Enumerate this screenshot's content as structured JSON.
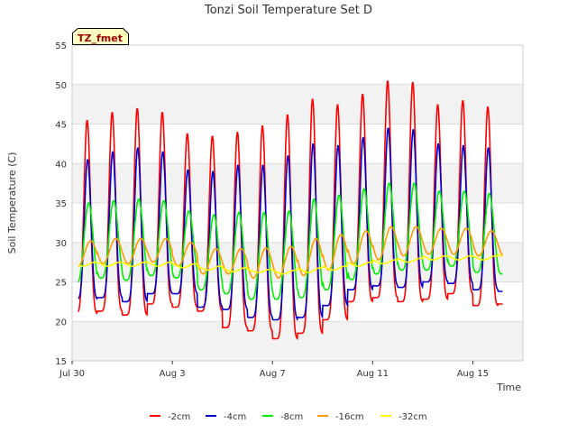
{
  "chart_data": {
    "type": "line",
    "title": "Tonzi Soil Temperature Set D",
    "xlabel": "Time",
    "ylabel": "Soil Temperature (C)",
    "annotation": "TZ_fmet",
    "xlim": [
      0,
      18
    ],
    "ylim": [
      15,
      55
    ],
    "x_ticks": [
      {
        "x": 0,
        "label": "Jul 30"
      },
      {
        "x": 4,
        "label": "Aug 3"
      },
      {
        "x": 8,
        "label": "Aug 7"
      },
      {
        "x": 12,
        "label": "Aug 11"
      },
      {
        "x": 16,
        "label": "Aug 15"
      }
    ],
    "y_ticks": [
      15,
      20,
      25,
      30,
      35,
      40,
      45,
      50,
      55
    ],
    "grid": true,
    "legend_position": "bottom",
    "x_units": "days since Jul 30 00:00",
    "days": [
      "Jul 30",
      "Jul 31",
      "Aug 1",
      "Aug 2",
      "Aug 3",
      "Aug 4",
      "Aug 5",
      "Aug 6",
      "Aug 7",
      "Aug 8",
      "Aug 9",
      "Aug 10",
      "Aug 11",
      "Aug 12",
      "Aug 13",
      "Aug 14",
      "Aug 15",
      "Aug 16"
    ],
    "series": [
      {
        "name": "-2cm",
        "color": "#ff0000",
        "daily_min": [
          21.0,
          21.3,
          20.8,
          22.2,
          21.8,
          21.3,
          19.2,
          18.8,
          17.8,
          18.5,
          20.2,
          22.5,
          23.0,
          22.5,
          22.8,
          23.5,
          22.0,
          22.2
        ],
        "daily_max": [
          45.5,
          46.5,
          47.0,
          46.5,
          43.8,
          43.5,
          44.0,
          44.8,
          46.2,
          48.2,
          47.5,
          48.8,
          50.5,
          50.3,
          47.5,
          48.0,
          47.2,
          47.0
        ]
      },
      {
        "name": "-4cm",
        "color": "#0000cc",
        "daily_min": [
          22.8,
          23.0,
          22.5,
          23.5,
          23.5,
          21.8,
          21.5,
          20.5,
          20.2,
          20.5,
          22.0,
          24.0,
          24.5,
          24.3,
          25.0,
          24.8,
          24.0,
          23.8
        ],
        "daily_max": [
          40.5,
          41.5,
          42.0,
          41.5,
          39.2,
          39.0,
          39.8,
          39.8,
          41.0,
          42.5,
          42.3,
          43.3,
          44.5,
          44.3,
          42.5,
          42.3,
          42.0,
          42.0
        ]
      },
      {
        "name": "-8cm",
        "color": "#00ee00",
        "daily_min": [
          24.8,
          25.5,
          25.2,
          25.8,
          25.5,
          24.0,
          23.5,
          22.8,
          22.8,
          23.0,
          24.0,
          25.3,
          26.0,
          26.5,
          26.5,
          27.0,
          26.2,
          26.0
        ],
        "daily_max": [
          35.0,
          35.3,
          35.5,
          35.3,
          34.0,
          33.5,
          33.8,
          33.8,
          34.0,
          35.5,
          36.0,
          36.8,
          37.5,
          37.5,
          36.5,
          36.5,
          36.2,
          36.2
        ]
      },
      {
        "name": "-16cm",
        "color": "#ff9900",
        "daily_min": [
          27.0,
          27.3,
          27.3,
          27.5,
          27.0,
          26.0,
          26.0,
          25.5,
          25.5,
          25.8,
          26.5,
          27.3,
          27.8,
          28.3,
          28.5,
          28.5,
          28.3,
          28.3
        ],
        "daily_max": [
          30.2,
          30.5,
          30.5,
          30.5,
          30.0,
          29.2,
          29.2,
          29.3,
          29.5,
          30.5,
          31.0,
          31.5,
          32.0,
          32.0,
          31.8,
          31.8,
          31.5,
          31.5
        ]
      },
      {
        "name": "-32cm",
        "color": "#ffff00",
        "daily_min": [
          27.0,
          27.0,
          27.0,
          27.0,
          26.8,
          26.5,
          26.3,
          26.2,
          26.0,
          26.2,
          26.5,
          27.0,
          27.3,
          27.5,
          27.8,
          27.8,
          27.8,
          28.0
        ],
        "daily_max": [
          27.5,
          27.5,
          27.5,
          27.5,
          27.3,
          27.0,
          26.8,
          26.6,
          26.5,
          26.8,
          27.0,
          27.5,
          27.8,
          28.0,
          28.3,
          28.3,
          28.3,
          28.5
        ]
      }
    ]
  }
}
